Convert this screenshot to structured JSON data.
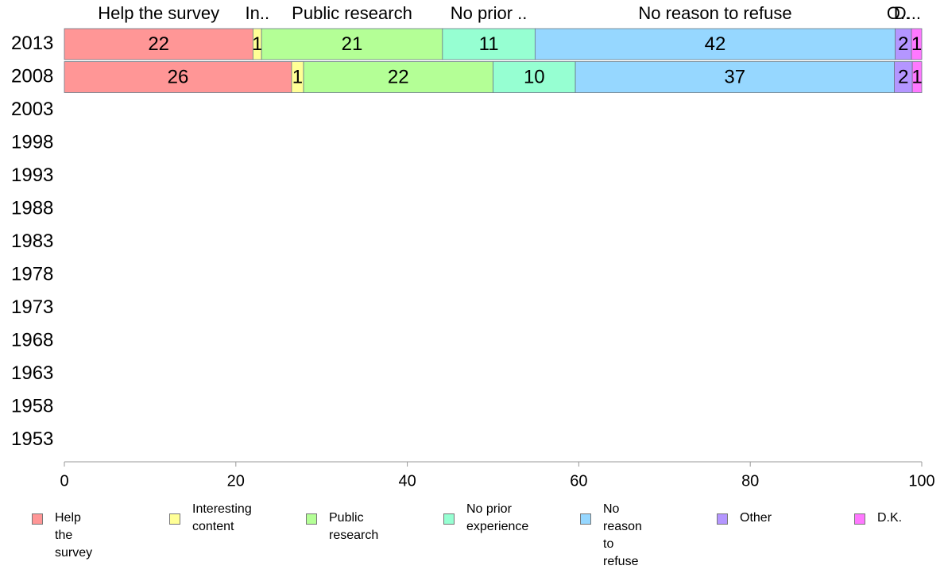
{
  "chart_data": {
    "type": "bar",
    "orientation": "horizontal",
    "stacked": true,
    "categories": [
      "2013",
      "2008",
      "2003",
      "1998",
      "1993",
      "1988",
      "1983",
      "1978",
      "1973",
      "1968",
      "1963",
      "1958",
      "1953"
    ],
    "series": [
      {
        "name": "Help the survey",
        "top_label": "Help the survey",
        "color": "#ff9696",
        "values": [
          22,
          26.5,
          null,
          null,
          null,
          null,
          null,
          null,
          null,
          null,
          null,
          null,
          null
        ],
        "value_labels": [
          "22",
          "26",
          "",
          "",
          "",
          "",
          "",
          "",
          "",
          "",
          "",
          "",
          ""
        ]
      },
      {
        "name": "Interesting content",
        "top_label": "In..",
        "color": "#ffff96",
        "values": [
          1,
          1.4,
          null,
          null,
          null,
          null,
          null,
          null,
          null,
          null,
          null,
          null,
          null
        ],
        "value_labels": [
          "1",
          "1",
          "",
          "",
          "",
          "",
          "",
          "",
          "",
          "",
          "",
          "",
          ""
        ]
      },
      {
        "name": "Public research",
        "top_label": "Public research",
        "color": "#b4ff96",
        "values": [
          21.1,
          22.1,
          null,
          null,
          null,
          null,
          null,
          null,
          null,
          null,
          null,
          null,
          null
        ],
        "value_labels": [
          "21",
          "22",
          "",
          "",
          "",
          "",
          "",
          "",
          "",
          "",
          "",
          "",
          ""
        ]
      },
      {
        "name": "No prior experience",
        "top_label": "No prior ..",
        "color": "#96ffd2",
        "values": [
          10.8,
          9.6,
          null,
          null,
          null,
          null,
          null,
          null,
          null,
          null,
          null,
          null,
          null
        ],
        "value_labels": [
          "11",
          "10",
          "",
          "",
          "",
          "",
          "",
          "",
          "",
          "",
          "",
          "",
          ""
        ]
      },
      {
        "name": "No reason to refuse",
        "top_label": "No reason to refuse",
        "color": "#96d7ff",
        "values": [
          42,
          37.2,
          null,
          null,
          null,
          null,
          null,
          null,
          null,
          null,
          null,
          null,
          null
        ],
        "value_labels": [
          "42",
          "37",
          "",
          "",
          "",
          "",
          "",
          "",
          "",
          "",
          "",
          "",
          ""
        ]
      },
      {
        "name": "Other",
        "top_label": "O..",
        "color": "#b496ff",
        "values": [
          1.9,
          2.1,
          null,
          null,
          null,
          null,
          null,
          null,
          null,
          null,
          null,
          null,
          null
        ],
        "value_labels": [
          "2",
          "2",
          "",
          "",
          "",
          "",
          "",
          "",
          "",
          "",
          "",
          "",
          ""
        ]
      },
      {
        "name": "D.K.",
        "top_label": "D...",
        "color": "#ff78ff",
        "values": [
          1.2,
          1.1,
          null,
          null,
          null,
          null,
          null,
          null,
          null,
          null,
          null,
          null,
          null
        ],
        "value_labels": [
          "1",
          "1",
          "",
          "",
          "",
          "",
          "",
          "",
          "",
          "",
          "",
          "",
          ""
        ]
      }
    ],
    "xlim": [
      0,
      100
    ],
    "x_ticks": [
      "0",
      "20",
      "40",
      "60",
      "80",
      "100"
    ],
    "title": "",
    "xlabel": "",
    "ylabel": "",
    "grid": false,
    "legend_position": "bottom"
  },
  "legend": {
    "items": [
      {
        "label": "Help the survey",
        "color": "#ff9696"
      },
      {
        "label": "Interesting\ncontent",
        "color": "#ffff96"
      },
      {
        "label": "Public research",
        "color": "#b4ff96"
      },
      {
        "label": "No prior\nexperience",
        "color": "#96ffd2"
      },
      {
        "label": "No reason\nto refuse",
        "color": "#96d7ff"
      },
      {
        "label": "Other",
        "color": "#b496ff"
      },
      {
        "label": "D.K.",
        "color": "#ff78ff"
      }
    ]
  }
}
